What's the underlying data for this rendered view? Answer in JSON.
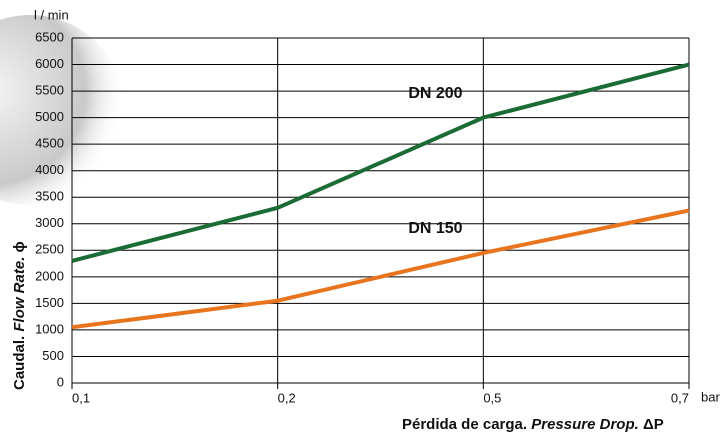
{
  "chart_data": {
    "type": "line",
    "y_unit": "l / min",
    "x_unit": "bar",
    "y_label": {
      "main": "Caudal.",
      "italic": "Flow Rate.",
      "symbol": "ϕ"
    },
    "x_label": {
      "main": "Pérdida de carga.",
      "italic": "Pressure Drop.",
      "symbol": "ΔP"
    },
    "categories": [
      "0,1",
      "0,2",
      "0,5",
      "0,7"
    ],
    "series": [
      {
        "name": "DN 200",
        "color": "#1b6b36",
        "values": [
          2300,
          3300,
          5000,
          6000
        ]
      },
      {
        "name": "DN 150",
        "color": "#e8741e",
        "values": [
          1050,
          1550,
          2450,
          3250
        ]
      }
    ],
    "ylim": [
      0,
      6500
    ],
    "yticks": [
      0,
      500,
      1000,
      1500,
      2000,
      2500,
      3000,
      3500,
      4000,
      4500,
      5000,
      5500,
      6000,
      6500
    ],
    "grid": true
  }
}
